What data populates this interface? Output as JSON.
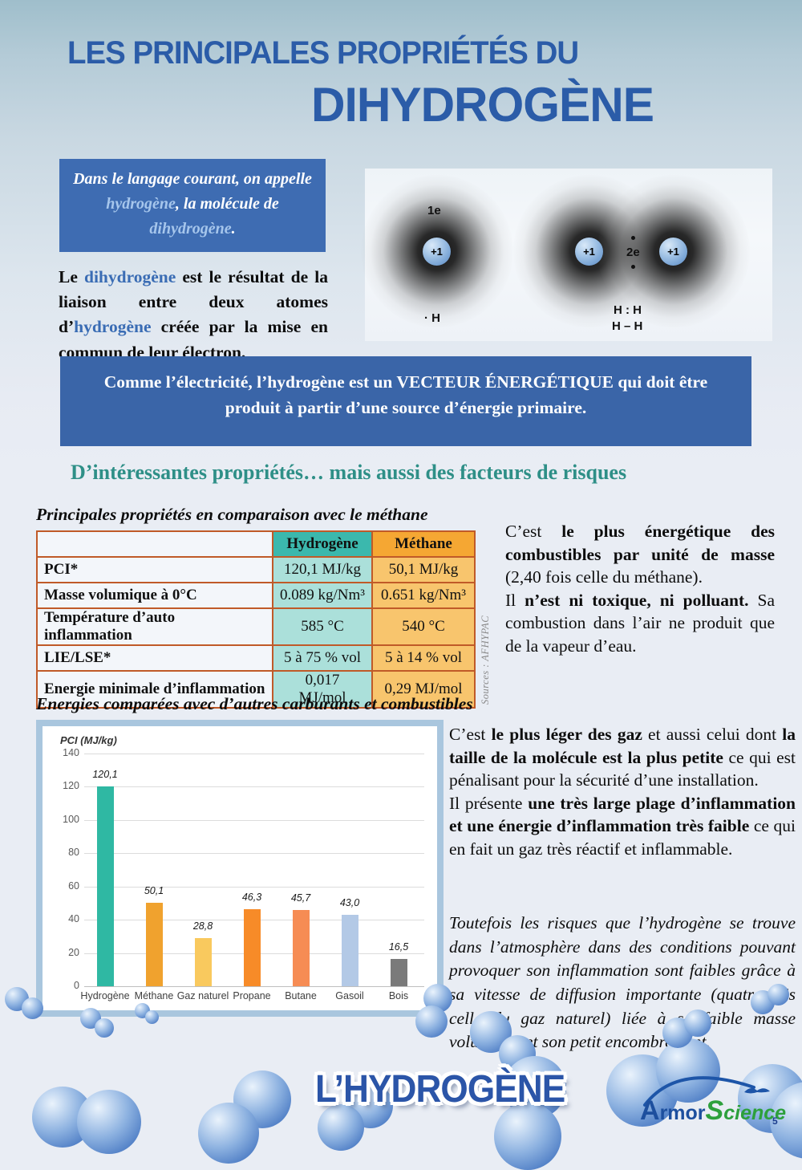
{
  "colors": {
    "title_blue": "#2b5ca8",
    "box_blue": "#3e6cb2",
    "banner_blue": "#3a65a8",
    "light_blue_word": "#a6c6ec",
    "inline_blue_word": "#3a6cb4",
    "teal_heading": "#2e8f87",
    "table_h2_header": "#3bb8ad",
    "table_h2_cell": "#abe0da",
    "table_ch4_header": "#f5a733",
    "table_ch4_cell": "#f8c56d",
    "table_border": "#c05a28",
    "chart_frame": "#a9c6de"
  },
  "header": {
    "title_line1": "LES PRINCIPALES PROPRIÉTÉS DU",
    "title_line2": "DIHYDROGÈNE"
  },
  "intro": {
    "box_segments": [
      {
        "t": "Dans le langage courant, on appelle "
      },
      {
        "t": "hydrogène",
        "c": "#a6c6ec"
      },
      {
        "t": ", la molécule de "
      },
      {
        "t": "dihydrogène",
        "c": "#a6c6ec"
      },
      {
        "t": "."
      }
    ],
    "paragraph_segments": [
      {
        "t": "Le "
      },
      {
        "t": "dihydrogène",
        "c": "#3a6cb4"
      },
      {
        "t": " est le résultat de la liaison entre deux atomes d’"
      },
      {
        "t": "hydrogène",
        "c": "#3a6cb4"
      },
      {
        "t": " créée par la mise en commun de leur électron."
      }
    ]
  },
  "atom_diagram": {
    "left_electron_label": "1e",
    "left_nucleus": "+1",
    "left_caption": "· H",
    "right_nucleus_left": "+1",
    "right_nucleus_right": "+1",
    "shared_electrons_label": "2e",
    "right_caption_line1": "H : H",
    "right_caption_line2": "H – H"
  },
  "banner": {
    "text": "Comme l’électricité, l’hydrogène est un VECTEUR ÉNERGÉTIQUE qui  doit être produit à partir d’une source d’énergie primaire."
  },
  "section_heading": "D’intéressantes propriétés… mais aussi des facteurs de risques",
  "table_section": {
    "heading": "Principales propriétés en comparaison avec le méthane",
    "columns": [
      "",
      "Hydrogène",
      "Méthane"
    ],
    "rows": [
      {
        "label": "PCI*",
        "hydrogen": "120,1 MJ/kg",
        "methane": "50,1 MJ/kg"
      },
      {
        "label": "Masse volumique à 0°C",
        "hydrogen": "0.089 kg/Nm³",
        "methane": "0.651 kg/Nm³"
      },
      {
        "label": "Température d’auto inflammation",
        "hydrogen": "585 °C",
        "methane": "540 °C"
      },
      {
        "label": "LIE/LSE*",
        "hydrogen": "5 à 75 % vol",
        "methane": "5 à 14 % vol"
      },
      {
        "label": "Energie minimale d’inflammation",
        "hydrogen": "0,017 MJ/mol",
        "methane": "0,29 MJ/mol"
      }
    ],
    "source_note": "Sources : AFHYPAC"
  },
  "right_text_1": {
    "p1": [
      {
        "t": "C’est "
      },
      {
        "t": "le plus énergétique des combustibles par unité de masse",
        "b": true
      },
      {
        "t": " (2,40 fois celle du méthane)."
      }
    ],
    "p2": [
      {
        "t": "Il "
      },
      {
        "t": "n’est ni toxique, ni polluant.",
        "b": true
      },
      {
        "t": " Sa combustion dans l’air ne produit que de la vapeur d’eau."
      }
    ]
  },
  "chart_section": {
    "heading": "Energies comparées avec d’autres carburants et combustibles"
  },
  "chart_data": {
    "type": "bar",
    "title": "PCI (MJ/kg)",
    "ylabel": "PCI (MJ/kg)",
    "xlabel": "",
    "categories": [
      "Hydrogène",
      "Méthane",
      "Gaz naturel",
      "Propane",
      "Butane",
      "Gasoil",
      "Bois"
    ],
    "values": [
      120.1,
      50.1,
      28.8,
      46.3,
      45.7,
      43.0,
      16.5
    ],
    "value_labels": [
      "120,1",
      "50,1",
      "28,8",
      "46,3",
      "45,7",
      "43,0",
      "16,5"
    ],
    "bar_colors": [
      "#2fb8a3",
      "#f0a22e",
      "#f9c95e",
      "#f78b28",
      "#f68c54",
      "#b3c9e6",
      "#7a7a7a"
    ],
    "ylim": [
      0,
      140
    ],
    "yticks": [
      0,
      20,
      40,
      60,
      80,
      100,
      120,
      140
    ],
    "grid": true,
    "legend": "none"
  },
  "right_text_2": {
    "p1": [
      {
        "t": " C’est "
      },
      {
        "t": "le plus léger des gaz",
        "b": true
      },
      {
        "t": " et aussi celui dont "
      },
      {
        "t": "la taille de la molécule est la plus petite",
        "b": true
      },
      {
        "t": " ce qui est pénalisant pour la sécurité d’une installation."
      }
    ],
    "p2": [
      {
        "t": "Il présente "
      },
      {
        "t": "une très large plage d’inflammation et une énergie d’inflammation très faible",
        "b": true
      },
      {
        "t": " ce qui en fait un gaz très réactif et inflammable."
      }
    ],
    "p3": [
      {
        "t": "Toutefois les risques que l’hydrogène se trouve dans l’atmosphère dans des conditions pouvant provoquer son inflammation sont faibles grâce à sa vitesse de diffusion importante (quatre fois celle du gaz naturel)  liée à sa faible masse volumique et son petit encombrement."
      }
    ]
  },
  "footer": {
    "logo_text": "L’HYDROGÈNE",
    "brand_part1": "Armor",
    "brand_part2": "Science",
    "page_number": "5"
  }
}
